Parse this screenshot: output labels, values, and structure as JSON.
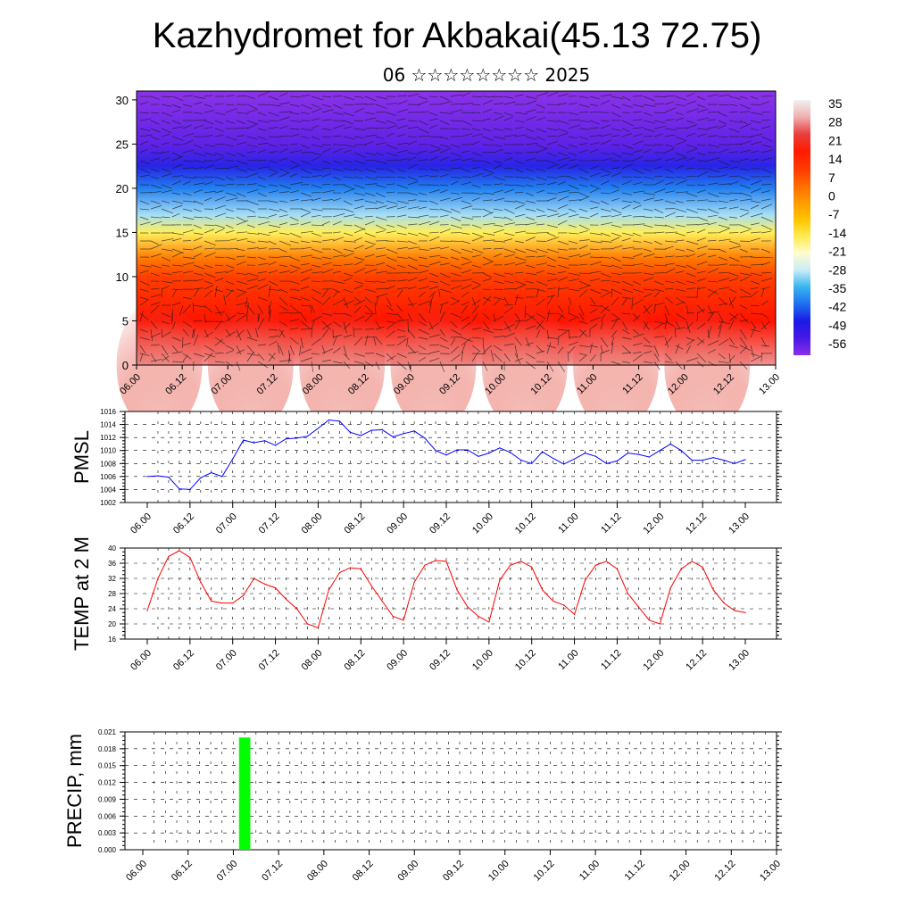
{
  "header": {
    "title": "Kazhydromet for Akbakai(45.13 72.75)",
    "subtitle": "06 ☆☆☆☆☆☆☆☆ 2025"
  },
  "colors": {
    "pmsl_line": "#0000ff",
    "temp_line": "#ff0000",
    "precip_bar": "#00ff00",
    "colorbar": [
      "#f0f0f0",
      "#f0b0b0",
      "#e84040",
      "#ff1a00",
      "#ff3800",
      "#ff6a00",
      "#ff9a00",
      "#ffc300",
      "#ffea50",
      "#fffcd0",
      "#c8ecf7",
      "#38b4ef",
      "#1e6ff0",
      "#1a1ae6",
      "#4818e6",
      "#8830e8"
    ]
  },
  "chart_data": [
    {
      "type": "heatmap",
      "title": "",
      "xlabel": "",
      "ylabel": "",
      "x_ticks": [
        "06.00",
        "06.12",
        "07.00",
        "07.12",
        "08.00",
        "08.12",
        "09.00",
        "09.12",
        "10.00",
        "10.12",
        "11.00",
        "11.12",
        "12.00",
        "12.12",
        "13.00"
      ],
      "y_ticks": [
        0,
        5,
        10,
        15,
        20,
        25,
        30
      ],
      "ylim": [
        0,
        31
      ],
      "colorbar_labels": [
        "35",
        "28",
        "21",
        "14",
        "7",
        "0",
        "-7",
        "-14",
        "-21",
        "-28",
        "-35",
        "-42",
        "-49",
        "-56"
      ],
      "overlay": "wind vectors",
      "field_profile": [
        {
          "level": 0,
          "value": 32
        },
        {
          "level": 5,
          "value": 22
        },
        {
          "level": 10,
          "value": 16
        },
        {
          "level": 12,
          "value": 10
        },
        {
          "level": 15,
          "value": -8
        },
        {
          "level": 17,
          "value": -18
        },
        {
          "level": 20,
          "value": -32
        },
        {
          "level": 22.5,
          "value": -45
        },
        {
          "level": 25,
          "value": -55
        },
        {
          "level": 31,
          "value": -60
        }
      ],
      "surface_warm_maxima_at": [
        "06.06",
        "07.06",
        "08.06",
        "09.06",
        "10.06",
        "11.06",
        "12.06"
      ]
    },
    {
      "type": "line",
      "ylabel": "PMSL",
      "xlabel": "",
      "ylim": [
        1002,
        1016
      ],
      "y_ticks": [
        "1002",
        "1004",
        "1006",
        "1008",
        "1010",
        "1012",
        "1014",
        "1016"
      ],
      "x_ticks": [
        "06.00",
        "06.12",
        "07.00",
        "07.12",
        "08.00",
        "08.12",
        "09.00",
        "09.12",
        "10.00",
        "10.12",
        "11.00",
        "11.12",
        "12.00",
        "12.12",
        "13.00"
      ],
      "x_hours": [
        0,
        3,
        6,
        9,
        12,
        15,
        18,
        21,
        24,
        27,
        30,
        33,
        36,
        39,
        42,
        45,
        48,
        51,
        54,
        57,
        60,
        63,
        66,
        69,
        72,
        75,
        78,
        81,
        84,
        87,
        90,
        93,
        96,
        99,
        102,
        105,
        108,
        111,
        114,
        117,
        120,
        123,
        126,
        129,
        132,
        135,
        138,
        141,
        144,
        147,
        150,
        153,
        156,
        159,
        162,
        165,
        168
      ],
      "values": [
        1006.0,
        1006.1,
        1005.9,
        1004.1,
        1004.0,
        1005.8,
        1006.6,
        1006.0,
        1008.7,
        1011.6,
        1011.2,
        1011.5,
        1010.8,
        1011.8,
        1011.9,
        1012.2,
        1013.4,
        1014.7,
        1014.5,
        1012.8,
        1012.3,
        1013.1,
        1013.2,
        1012.1,
        1012.6,
        1013.0,
        1011.9,
        1010.0,
        1009.3,
        1010.1,
        1010.1,
        1009.1,
        1009.6,
        1010.4,
        1009.7,
        1008.5,
        1008.0,
        1009.8,
        1008.8,
        1007.9,
        1008.7,
        1009.6,
        1009.1,
        1008.0,
        1008.4,
        1009.6,
        1009.4,
        1009.0,
        1010.0,
        1011.0,
        1010.0,
        1008.5,
        1008.5,
        1008.9,
        1008.5,
        1008.0,
        1008.6
      ]
    },
    {
      "type": "line",
      "ylabel": "TEMP at 2 M",
      "xlabel": "",
      "ylim": [
        16,
        40
      ],
      "y_ticks": [
        "16",
        "20",
        "24",
        "28",
        "32",
        "36",
        "40"
      ],
      "x_ticks": [
        "06.00",
        "06.12",
        "07.00",
        "07.12",
        "08.00",
        "08.12",
        "09.00",
        "09.12",
        "10.00",
        "10.12",
        "11.00",
        "11.12",
        "12.00",
        "12.12",
        "13.00"
      ],
      "x_hours": [
        0,
        3,
        6,
        9,
        12,
        15,
        18,
        21,
        24,
        27,
        30,
        33,
        36,
        39,
        42,
        45,
        48,
        51,
        54,
        57,
        60,
        63,
        66,
        69,
        72,
        75,
        78,
        81,
        84,
        87,
        90,
        93,
        96,
        99,
        102,
        105,
        108,
        111,
        114,
        117,
        120,
        123,
        126,
        129,
        132,
        135,
        138,
        141,
        144,
        147,
        150,
        153,
        156,
        159,
        162,
        165,
        168
      ],
      "values": [
        23.5,
        32.0,
        37.8,
        39.3,
        37.5,
        31.0,
        26.0,
        25.5,
        25.5,
        27.5,
        32.0,
        30.5,
        29.5,
        26.5,
        24.0,
        20.0,
        19.0,
        29.0,
        33.5,
        34.8,
        34.5,
        30.0,
        26.0,
        22.0,
        21.0,
        31.0,
        35.5,
        36.7,
        36.5,
        29.0,
        24.5,
        22.0,
        20.5,
        31.5,
        35.5,
        36.5,
        35.0,
        29.0,
        26.0,
        25.0,
        22.5,
        31.5,
        35.5,
        36.5,
        34.5,
        28.0,
        24.5,
        21.0,
        20.0,
        29.5,
        34.5,
        36.5,
        35.0,
        29.0,
        25.5,
        23.5,
        23.0
      ]
    },
    {
      "type": "bar",
      "ylabel": "PRECIP, mm",
      "xlabel": "",
      "ylim": [
        0,
        0.021
      ],
      "y_ticks": [
        "0.000",
        "0.003",
        "0.006",
        "0.009",
        "0.012",
        "0.015",
        "0.018",
        "0.021"
      ],
      "x_ticks": [
        "06.00",
        "06.12",
        "07.00",
        "07.12",
        "08.00",
        "08.12",
        "09.00",
        "09.12",
        "10.00",
        "10.12",
        "11.00",
        "11.12",
        "12.00",
        "12.12",
        "13.00"
      ],
      "bars": [
        {
          "x_hour": 27,
          "width_hours": 3,
          "value": 0.02
        }
      ]
    }
  ]
}
